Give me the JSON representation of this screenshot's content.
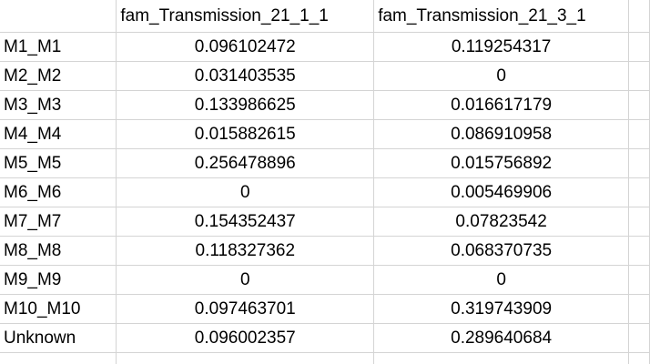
{
  "sheet": {
    "headers": [
      "",
      "fam_Transmission_21_1_1",
      "fam_Transmission_21_3_1"
    ],
    "rows": [
      {
        "label": "M1_M1",
        "v1": "0.096102472",
        "v2": "0.119254317"
      },
      {
        "label": "M2_M2",
        "v1": "0.031403535",
        "v2": "0"
      },
      {
        "label": "M3_M3",
        "v1": "0.133986625",
        "v2": "0.016617179"
      },
      {
        "label": "M4_M4",
        "v1": "0.015882615",
        "v2": "0.086910958"
      },
      {
        "label": "M5_M5",
        "v1": "0.256478896",
        "v2": "0.015756892"
      },
      {
        "label": "M6_M6",
        "v1": "0",
        "v2": "0.005469906"
      },
      {
        "label": "M7_M7",
        "v1": "0.154352437",
        "v2": "0.07823542"
      },
      {
        "label": "M8_M8",
        "v1": "0.118327362",
        "v2": "0.068370735"
      },
      {
        "label": "M9_M9",
        "v1": "0",
        "v2": "0"
      },
      {
        "label": "M10_M10",
        "v1": "0.097463701",
        "v2": "0.319743909"
      },
      {
        "label": "Unknown",
        "v1": "0.096002357",
        "v2": "0.289640684"
      }
    ]
  }
}
